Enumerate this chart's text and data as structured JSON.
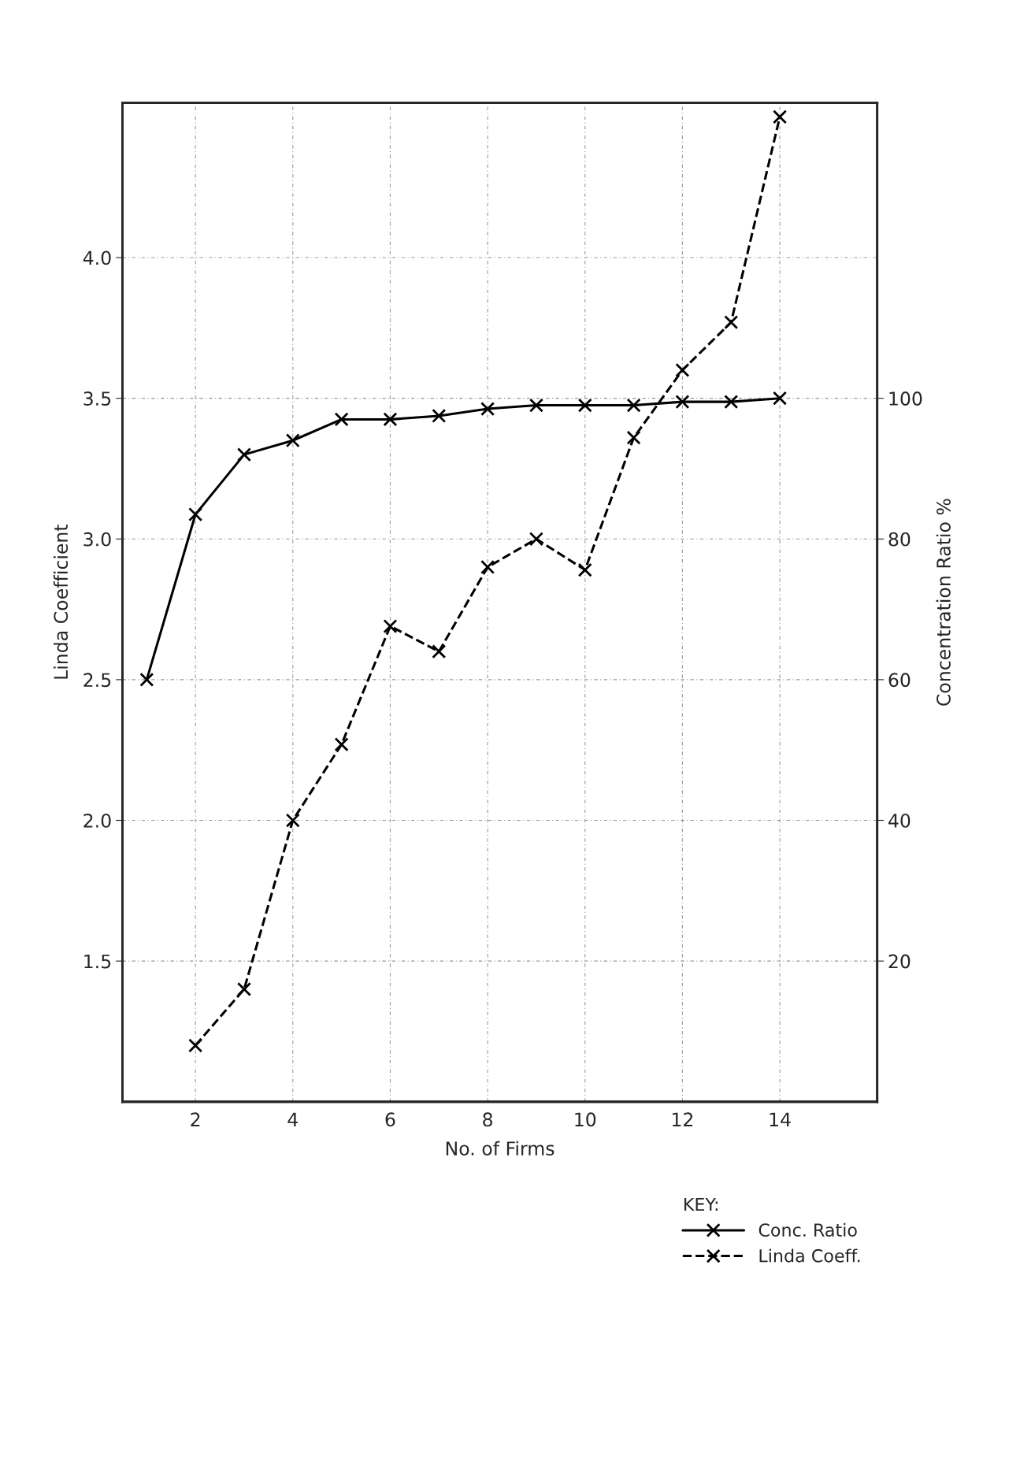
{
  "chart_data": {
    "type": "line",
    "xlabel": "No. of Firms",
    "ylabel": "Linda Coefficient",
    "y2label": "Concentration Ratio %",
    "legend_title": "KEY:",
    "legend": "bottom right",
    "grid": true,
    "marker": "cross",
    "x": [
      1,
      2,
      3,
      4,
      5,
      6,
      7,
      8,
      9,
      10,
      11,
      12,
      13,
      14
    ],
    "xlim": [
      0.5,
      16
    ],
    "xticks": [
      2,
      4,
      6,
      8,
      10,
      12,
      14
    ],
    "ylim": [
      1.0,
      4.55
    ],
    "yticks": [
      1.5,
      {
        "value": 2,
        "label": "2.0"
      },
      2.5,
      {
        "value": 3,
        "label": "3.0"
      },
      3.5,
      {
        "value": 4,
        "label": "4.0"
      }
    ],
    "y2lim": [
      0,
      142
    ],
    "y2ticks": [
      20,
      40,
      60,
      80,
      100
    ],
    "series": [
      {
        "name": "Conc. Ratio",
        "color": "#000000",
        "axis": "y2",
        "line_style": "solid",
        "values": [
          60,
          83.5,
          92,
          94,
          97,
          97,
          97.5,
          98.5,
          99,
          99,
          99,
          99.5,
          99.5,
          100
        ]
      },
      {
        "name": "Linda Coeff.",
        "color": "#000000",
        "axis": "y",
        "line_style": "dashed",
        "x": [
          2,
          3,
          4,
          5,
          6,
          7,
          8,
          9,
          10,
          11,
          12,
          13,
          14
        ],
        "values": [
          1.2,
          1.4,
          2.0,
          2.27,
          2.69,
          2.6,
          2.9,
          3.0,
          2.89,
          3.36,
          3.6,
          3.77,
          4.5
        ]
      }
    ]
  }
}
